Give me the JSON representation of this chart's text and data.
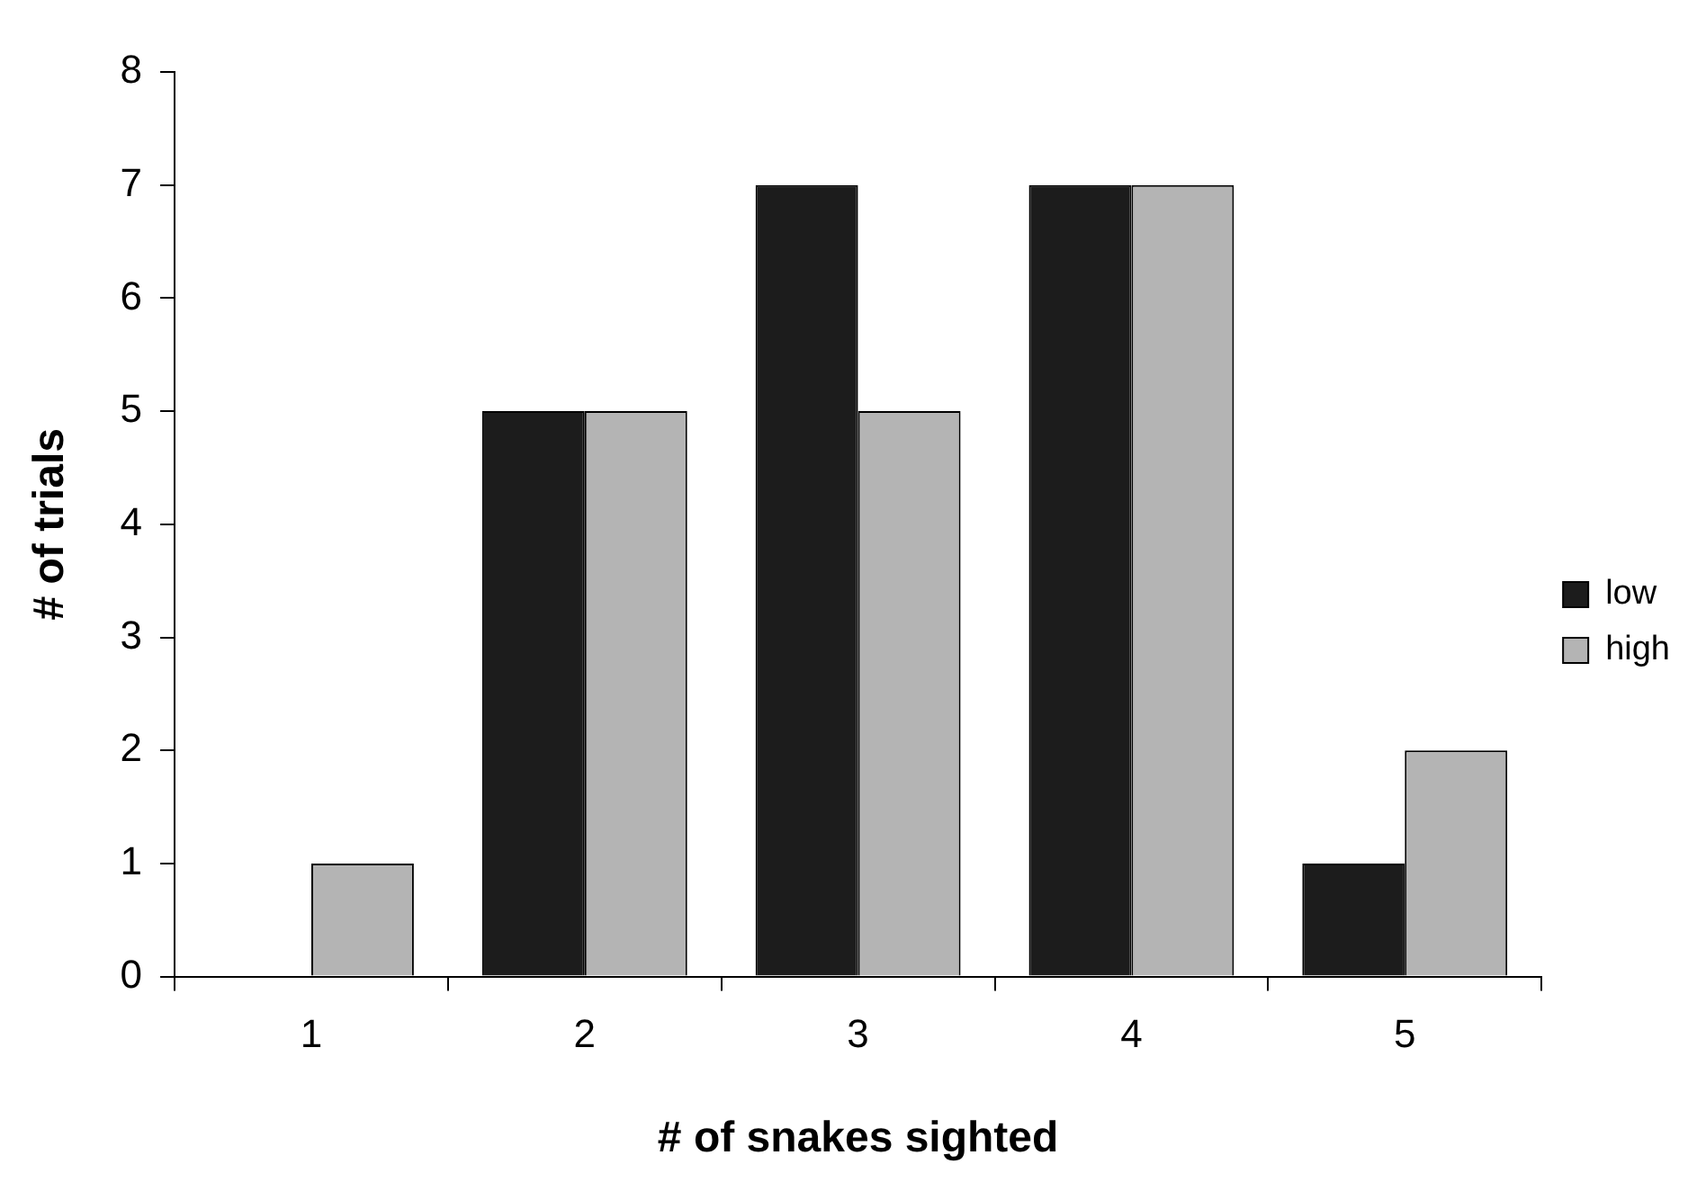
{
  "chart_data": {
    "type": "bar",
    "xlabel": "# of snakes sighted",
    "ylabel": "# of trials",
    "categories": [
      "1",
      "2",
      "3",
      "4",
      "5"
    ],
    "series": [
      {
        "name": "low",
        "color": "#1c1c1c",
        "values": [
          0,
          5,
          7,
          7,
          1
        ]
      },
      {
        "name": "high",
        "color": "#b4b4b4",
        "values": [
          1,
          5,
          5,
          7,
          2
        ]
      }
    ],
    "ylim": [
      0,
      8
    ],
    "yticks": [
      0,
      1,
      2,
      3,
      4,
      5,
      6,
      7,
      8
    ],
    "grid": false,
    "legend": "right"
  }
}
